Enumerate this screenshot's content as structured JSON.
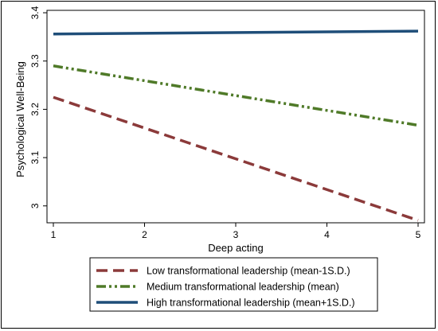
{
  "chart_data": {
    "type": "line",
    "xlabel": "Deep acting",
    "ylabel": "Psychological Well-Being",
    "x": [
      1,
      5
    ],
    "xlim": [
      1,
      5
    ],
    "ylim": [
      2.965,
      3.405
    ],
    "xticks": [
      1,
      2,
      3,
      4,
      5
    ],
    "yticks": [
      3,
      3.1,
      3.2,
      3.3,
      3.4
    ],
    "ytick_labels": [
      "3",
      "3.1",
      "3.2",
      "3.3",
      "3.4"
    ],
    "grid": false,
    "legend_position": "bottom",
    "series": [
      {
        "name": "Low transformational leadership (mean-1S.D.)",
        "values": [
          3.225,
          2.97
        ],
        "color": "#8b3a3a",
        "dash": "long-dash"
      },
      {
        "name": "Medium transformational leadership (mean)",
        "values": [
          3.29,
          3.167
        ],
        "color": "#4f7a28",
        "dash": "dash-dot-dot"
      },
      {
        "name": "High transformational leadership (mean+1S.D.)",
        "values": [
          3.356,
          3.362
        ],
        "color": "#1f4e79",
        "dash": "solid"
      }
    ]
  }
}
